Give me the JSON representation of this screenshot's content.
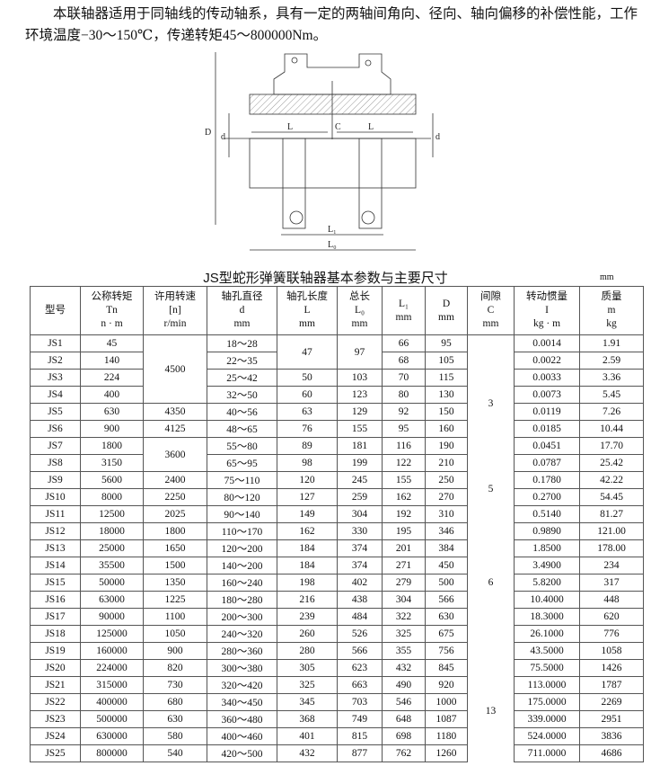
{
  "intro": "本联轴器适用于同轴线的传动轴系，具有一定的两轴间角向、径向、轴向偏移的补偿性能，工作环境温度−30～150℃，传递转矩45～800000Nm。",
  "drawing_labels": {
    "D": "D",
    "d_left": "d",
    "L_left": "L",
    "C": "C",
    "L_right": "L",
    "d_right": "d",
    "L1": "L₁",
    "L0": "L₀"
  },
  "table": {
    "title": "JS型蛇形弹簧联轴器基本参数与主要尺寸",
    "unit": "mm",
    "headers": [
      [
        "型号"
      ],
      [
        "公称转矩",
        "Tn",
        "n · m"
      ],
      [
        "许用转速",
        "[n]",
        "r/min"
      ],
      [
        "轴孔直径",
        "d",
        "mm"
      ],
      [
        "轴孔长度",
        "L",
        "mm"
      ],
      [
        "总长",
        "L₀",
        "mm"
      ],
      [
        "L₁",
        "mm"
      ],
      [
        "D",
        "mm"
      ],
      [
        "间隙",
        "C",
        "mm"
      ],
      [
        "转动惯量",
        "I",
        "kg · m"
      ],
      [
        "质量",
        "m",
        "kg"
      ]
    ],
    "rows": [
      [
        "JS1",
        "45",
        "4500",
        "18～28",
        "47",
        "97",
        "66",
        "95",
        "3",
        "0.0014",
        "1.91"
      ],
      [
        "JS2",
        "140",
        null,
        "22～35",
        null,
        null,
        "68",
        "105",
        null,
        "0.0022",
        "2.59"
      ],
      [
        "JS3",
        "224",
        null,
        "25～42",
        "50",
        "103",
        "70",
        "115",
        null,
        "0.0033",
        "3.36"
      ],
      [
        "JS4",
        "400",
        null,
        "32～50",
        "60",
        "123",
        "80",
        "130",
        null,
        "0.0073",
        "5.45"
      ],
      [
        "JS5",
        "630",
        "4350",
        "40～56",
        "63",
        "129",
        "92",
        "150",
        null,
        "0.0119",
        "7.26"
      ],
      [
        "JS6",
        "900",
        "4125",
        "48～65",
        "76",
        "155",
        "95",
        "160",
        null,
        "0.0185",
        "10.44"
      ],
      [
        "JS7",
        "1800",
        "3600",
        "55～80",
        "89",
        "181",
        "116",
        "190",
        null,
        "0.0451",
        "17.70"
      ],
      [
        "JS8",
        "3150",
        null,
        "65～95",
        "98",
        "199",
        "122",
        "210",
        null,
        "0.0787",
        "25.42"
      ],
      [
        "JS9",
        "5600",
        "2400",
        "75～110",
        "120",
        "245",
        "155",
        "250",
        "5",
        "0.1780",
        "42.22"
      ],
      [
        "JS10",
        "8000",
        "2250",
        "80～120",
        "127",
        "259",
        "162",
        "270",
        null,
        "0.2700",
        "54.45"
      ],
      [
        "JS11",
        "12500",
        "2025",
        "90～140",
        "149",
        "304",
        "192",
        "310",
        "6",
        "0.5140",
        "81.27"
      ],
      [
        "JS12",
        "18000",
        "1800",
        "110～170",
        "162",
        "330",
        "195",
        "346",
        null,
        "0.9890",
        "121.00"
      ],
      [
        "JS13",
        "25000",
        "1650",
        "120～200",
        "184",
        "374",
        "201",
        "384",
        null,
        "1.8500",
        "178.00"
      ],
      [
        "JS14",
        "35500",
        "1500",
        "140～200",
        "184",
        "374",
        "271",
        "450",
        null,
        "3.4900",
        "234"
      ],
      [
        "JS15",
        "50000",
        "1350",
        "160～240",
        "198",
        "402",
        "279",
        "500",
        null,
        "5.8200",
        "317"
      ],
      [
        "JS16",
        "63000",
        "1225",
        "180～280",
        "216",
        "438",
        "304",
        "566",
        null,
        "10.4000",
        "448"
      ],
      [
        "JS17",
        "90000",
        "1100",
        "200～300",
        "239",
        "484",
        "322",
        "630",
        null,
        "18.3000",
        "620"
      ],
      [
        "JS18",
        "125000",
        "1050",
        "240～320",
        "260",
        "526",
        "325",
        "675",
        null,
        "26.1000",
        "776"
      ],
      [
        "JS19",
        "160000",
        "900",
        "280～360",
        "280",
        "566",
        "355",
        "756",
        null,
        "43.5000",
        "1058"
      ],
      [
        "JS20",
        "224000",
        "820",
        "300～380",
        "305",
        "623",
        "432",
        "845",
        "13",
        "75.5000",
        "1426"
      ],
      [
        "JS21",
        "315000",
        "730",
        "320～420",
        "325",
        "663",
        "490",
        "920",
        null,
        "113.0000",
        "1787"
      ],
      [
        "JS22",
        "400000",
        "680",
        "340～450",
        "345",
        "703",
        "546",
        "1000",
        null,
        "175.0000",
        "2269"
      ],
      [
        "JS23",
        "500000",
        "630",
        "360～480",
        "368",
        "749",
        "648",
        "1087",
        null,
        "339.0000",
        "2951"
      ],
      [
        "JS24",
        "630000",
        "580",
        "400～460",
        "401",
        "815",
        "698",
        "1180",
        null,
        "524.0000",
        "3836"
      ],
      [
        "JS25",
        "800000",
        "540",
        "420～500",
        "432",
        "877",
        "762",
        "1260",
        null,
        "711.0000",
        "4686"
      ]
    ]
  }
}
